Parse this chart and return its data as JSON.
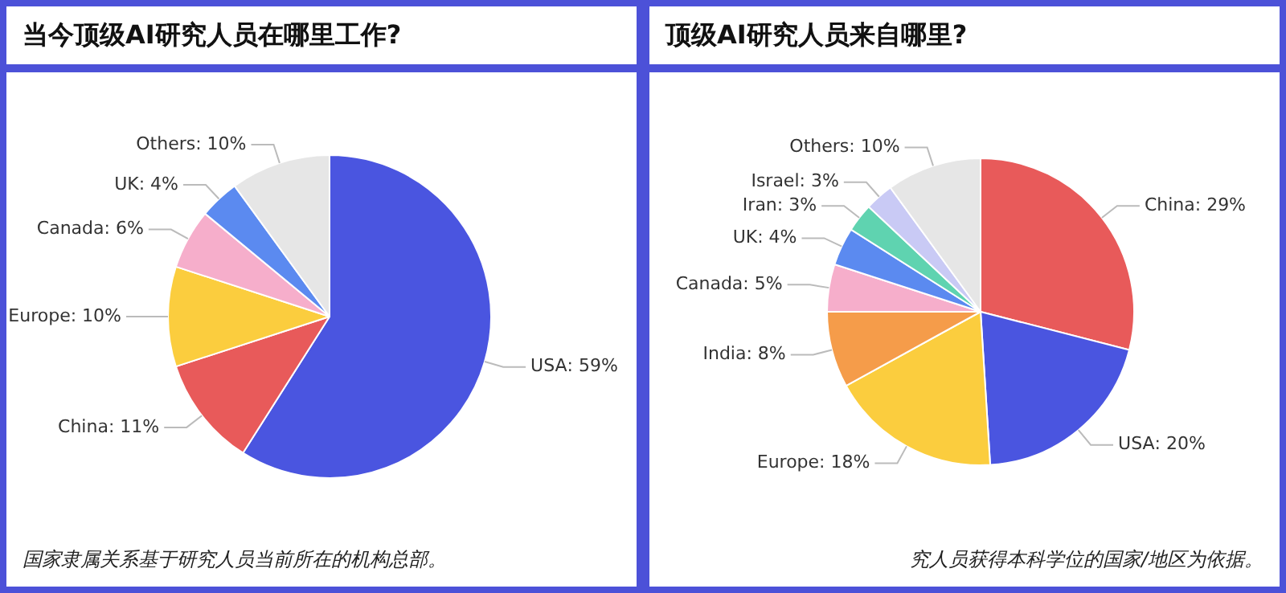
{
  "chart_data": [
    {
      "type": "pie",
      "title": "当今顶级AI研究人员在哪里工作?",
      "categories": [
        "USA",
        "China",
        "Europe",
        "Canada",
        "UK",
        "Others"
      ],
      "values": [
        59,
        11,
        10,
        6,
        4,
        10
      ],
      "colors": [
        "#4a55e0",
        "#e85a5a",
        "#fbcd3e",
        "#f6aecb",
        "#5b8af0",
        "#e6e6e6"
      ],
      "value_labels": [
        ": 59%",
        ": 11%",
        ": 10%",
        ": 6%",
        ": 4%",
        ": 10%"
      ],
      "annotations": [
        "国家隶属关系基于研究人员当前所在的机构总部。"
      ]
    },
    {
      "type": "pie",
      "title": "顶级AI研究人员来自哪里?",
      "categories": [
        "China",
        "USA",
        "Europe",
        "India",
        "Canada",
        "UK",
        "Iran",
        "Israel",
        "Others"
      ],
      "values": [
        29,
        20,
        18,
        8,
        5,
        4,
        3,
        3,
        10
      ],
      "colors": [
        "#e85a5a",
        "#4a55e0",
        "#fbcd3e",
        "#f59c4a",
        "#f6aecb",
        "#5b8af0",
        "#5fd3b0",
        "#c9caf5",
        "#e6e6e6"
      ],
      "value_labels": [
        ": 29%",
        ": 20%",
        ": 18%",
        ": 8%",
        ": 5%",
        ": 4%",
        ": 3%",
        ": 3%",
        ": 10%"
      ],
      "annotations": [
        "究人员获得本科学位的国家/地区为依据。"
      ]
    }
  ]
}
